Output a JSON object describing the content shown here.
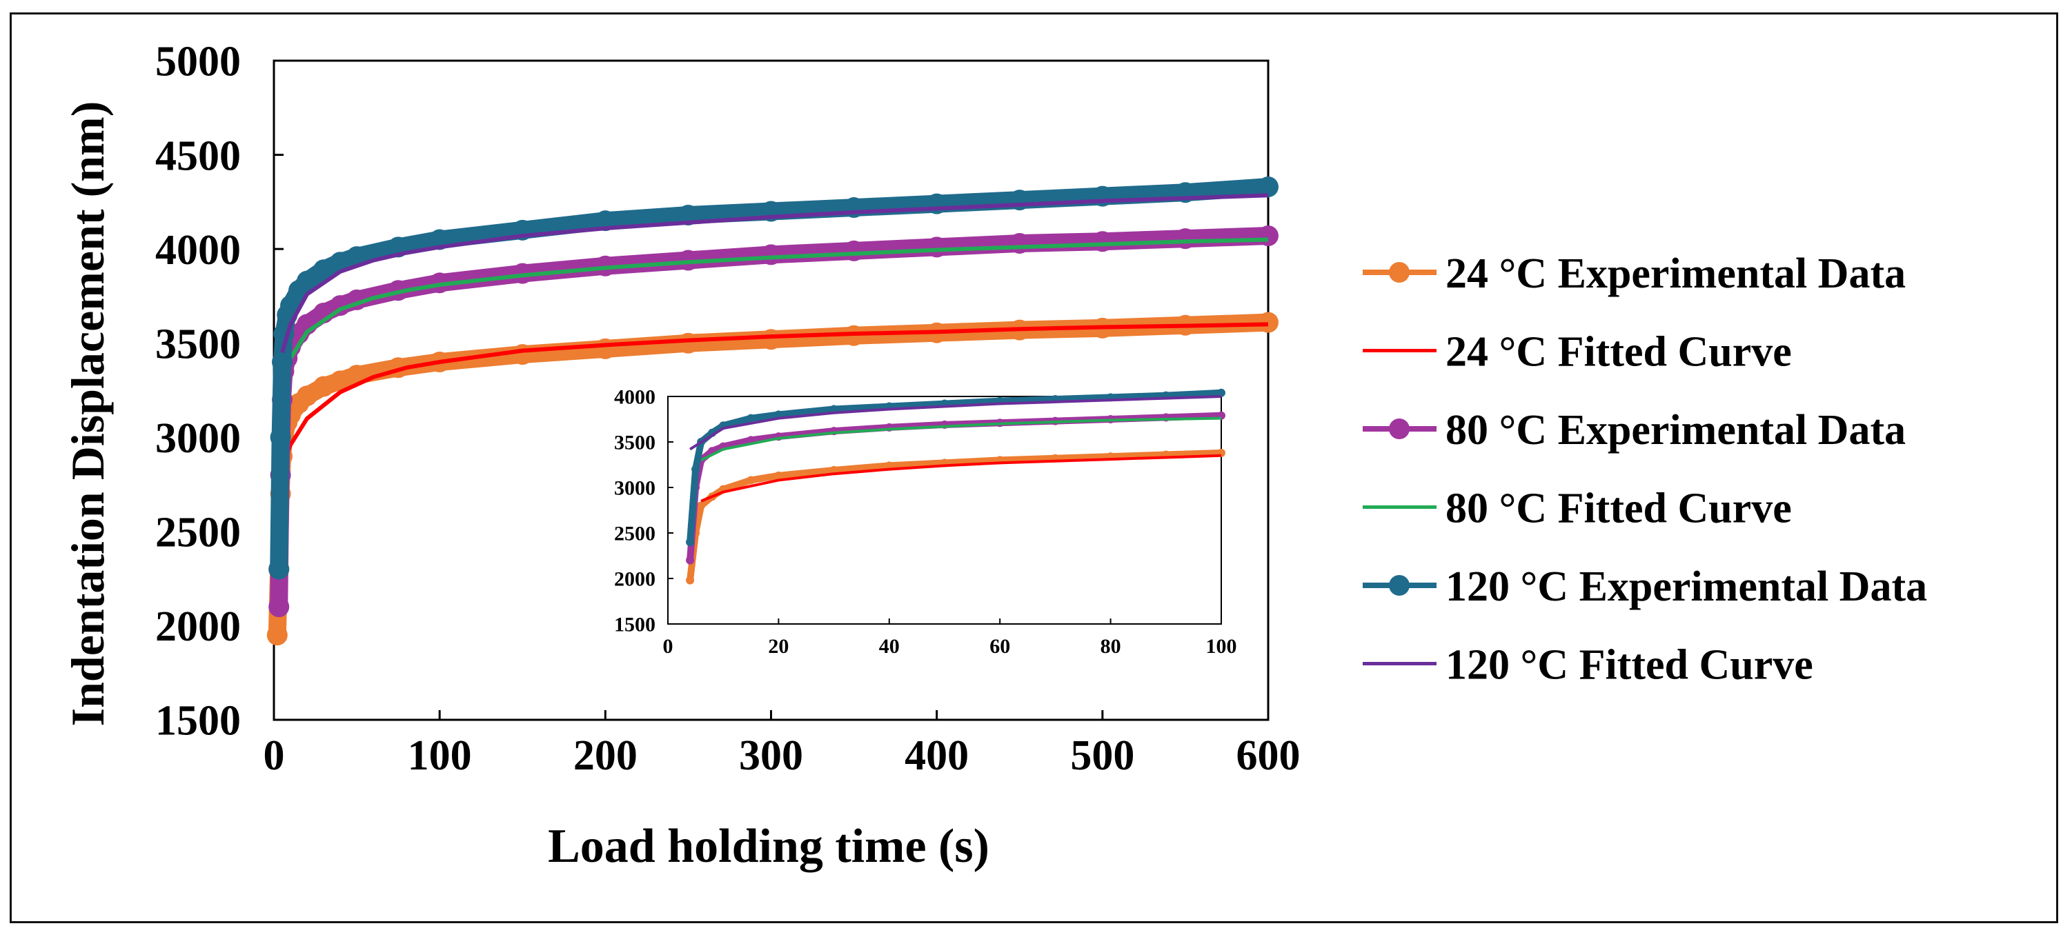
{
  "chart_data": [
    {
      "type": "scatter",
      "title": "",
      "xlabel": "Load holding time (s)",
      "ylabel": "Indentation Displacement (nm)",
      "xlim": [
        0,
        600
      ],
      "ylim": [
        1500,
        5000
      ],
      "x_ticks": [
        "0",
        "100",
        "200",
        "300",
        "400",
        "500",
        "600"
      ],
      "y_ticks": [
        "1500",
        "2000",
        "2500",
        "3000",
        "3500",
        "4000",
        "4500",
        "5000"
      ],
      "grid": false,
      "legend_position": "right",
      "series": [
        {
          "name": "24 °C Experimental Data",
          "kind": "points",
          "color": "#ED7D31",
          "x": [
            2,
            3,
            4,
            5,
            6,
            8,
            10,
            15,
            20,
            30,
            40,
            50,
            75,
            100,
            150,
            200,
            250,
            300,
            350,
            400,
            450,
            500,
            550,
            600
          ],
          "y": [
            1950,
            2300,
            2700,
            2900,
            3000,
            3080,
            3120,
            3180,
            3220,
            3270,
            3300,
            3330,
            3370,
            3400,
            3440,
            3470,
            3500,
            3520,
            3540,
            3555,
            3570,
            3580,
            3595,
            3610
          ]
        },
        {
          "name": "24 °C Fitted Curve",
          "kind": "line",
          "color": "#FF0000",
          "x": [
            5,
            10,
            20,
            40,
            60,
            80,
            100,
            150,
            200,
            250,
            300,
            350,
            400,
            450,
            500,
            550,
            600
          ],
          "y": [
            2850,
            2960,
            3100,
            3240,
            3320,
            3370,
            3400,
            3460,
            3490,
            3515,
            3535,
            3550,
            3560,
            3575,
            3585,
            3592,
            3600
          ]
        },
        {
          "name": "80 °C Experimental Data",
          "kind": "points",
          "color": "#A0359E",
          "x": [
            3,
            4,
            5,
            6,
            8,
            10,
            15,
            20,
            30,
            40,
            50,
            75,
            100,
            150,
            200,
            250,
            300,
            350,
            400,
            450,
            500,
            550,
            600
          ],
          "y": [
            2100,
            2800,
            3200,
            3350,
            3420,
            3480,
            3550,
            3600,
            3660,
            3700,
            3730,
            3780,
            3820,
            3870,
            3910,
            3940,
            3970,
            3990,
            4010,
            4030,
            4040,
            4055,
            4070
          ]
        },
        {
          "name": "80 °C Fitted Curve",
          "kind": "line",
          "color": "#22AA55",
          "x": [
            5,
            10,
            20,
            40,
            60,
            80,
            100,
            150,
            200,
            250,
            300,
            350,
            400,
            450,
            500,
            550,
            600
          ],
          "y": [
            3300,
            3420,
            3560,
            3680,
            3740,
            3780,
            3810,
            3860,
            3900,
            3930,
            3955,
            3975,
            3995,
            4010,
            4025,
            4040,
            4050
          ]
        },
        {
          "name": "120 °C Experimental Data",
          "kind": "points",
          "color": "#1F6B8C",
          "x": [
            3,
            4,
            5,
            6,
            8,
            10,
            15,
            20,
            30,
            40,
            50,
            75,
            100,
            150,
            200,
            250,
            300,
            350,
            400,
            450,
            500,
            550,
            600
          ],
          "y": [
            2300,
            3000,
            3400,
            3550,
            3650,
            3700,
            3780,
            3830,
            3890,
            3930,
            3960,
            4010,
            4050,
            4100,
            4150,
            4180,
            4200,
            4220,
            4240,
            4260,
            4280,
            4300,
            4330
          ]
        },
        {
          "name": "120 °C Fitted Curve",
          "kind": "line",
          "color": "#6A2E9A",
          "x": [
            5,
            10,
            20,
            40,
            60,
            80,
            100,
            150,
            200,
            250,
            300,
            350,
            400,
            450,
            500,
            550,
            600
          ],
          "y": [
            3450,
            3600,
            3760,
            3880,
            3940,
            3980,
            4010,
            4070,
            4110,
            4140,
            4170,
            4195,
            4215,
            4235,
            4255,
            4270,
            4285
          ]
        }
      ]
    },
    {
      "type": "scatter",
      "title": "",
      "note": "inset: zoom of first 100 s",
      "xlabel": "",
      "ylabel": "",
      "xlim": [
        0,
        100
      ],
      "ylim": [
        1500,
        4000
      ],
      "x_ticks": [
        "0",
        "20",
        "40",
        "60",
        "80",
        "100"
      ],
      "y_ticks": [
        "1500",
        "2000",
        "2500",
        "3000",
        "3500",
        "4000"
      ],
      "grid": false,
      "series": [
        {
          "name": "24 °C Experimental Data",
          "kind": "points",
          "color": "#ED7D31",
          "x": [
            4,
            5,
            6,
            8,
            10,
            15,
            20,
            30,
            40,
            50,
            60,
            70,
            80,
            90,
            100
          ],
          "y": [
            1980,
            2500,
            2800,
            2900,
            2980,
            3080,
            3130,
            3190,
            3240,
            3270,
            3300,
            3320,
            3340,
            3360,
            3380
          ]
        },
        {
          "name": "24 °C Fitted Curve",
          "kind": "line",
          "color": "#FF0000",
          "x": [
            6,
            10,
            20,
            30,
            40,
            50,
            60,
            70,
            80,
            90,
            100
          ],
          "y": [
            2850,
            2950,
            3080,
            3150,
            3200,
            3240,
            3270,
            3290,
            3310,
            3330,
            3350
          ]
        },
        {
          "name": "80 °C Experimental Data",
          "kind": "points",
          "color": "#A0359E",
          "x": [
            4,
            5,
            6,
            8,
            10,
            15,
            20,
            30,
            40,
            50,
            60,
            70,
            80,
            90,
            100
          ],
          "y": [
            2200,
            3000,
            3300,
            3400,
            3450,
            3520,
            3560,
            3620,
            3660,
            3690,
            3710,
            3730,
            3750,
            3770,
            3790
          ]
        },
        {
          "name": "80 °C Fitted Curve",
          "kind": "line",
          "color": "#22AA55",
          "x": [
            6,
            10,
            20,
            30,
            40,
            50,
            60,
            70,
            80,
            90,
            100
          ],
          "y": [
            3300,
            3420,
            3540,
            3600,
            3640,
            3670,
            3700,
            3720,
            3740,
            3750,
            3760
          ]
        },
        {
          "name": "120 °C Experimental Data",
          "kind": "points",
          "color": "#1F6B8C",
          "x": [
            4,
            5,
            6,
            8,
            10,
            15,
            20,
            30,
            40,
            50,
            60,
            70,
            80,
            90,
            100
          ],
          "y": [
            2400,
            3200,
            3500,
            3600,
            3680,
            3760,
            3800,
            3860,
            3890,
            3920,
            3950,
            3970,
            3990,
            4010,
            4040
          ]
        },
        {
          "name": "120 °C Fitted Curve",
          "kind": "line",
          "color": "#6A2E9A",
          "x": [
            4,
            10,
            20,
            30,
            40,
            50,
            60,
            70,
            80,
            90,
            100
          ],
          "y": [
            3420,
            3650,
            3760,
            3820,
            3860,
            3890,
            3920,
            3940,
            3960,
            3980,
            4000
          ]
        }
      ]
    }
  ]
}
